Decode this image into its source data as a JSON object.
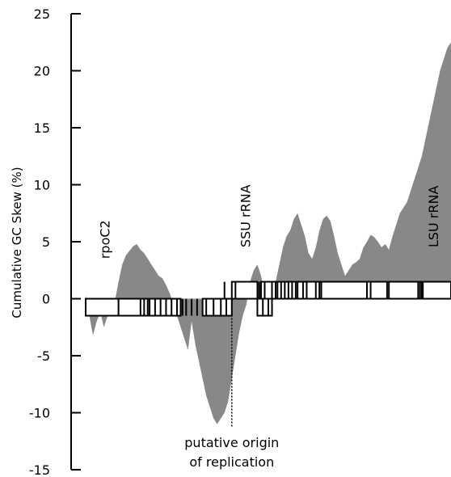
{
  "chart_data": {
    "type": "area",
    "title": "",
    "xlabel": "",
    "ylabel": "Cumulative GC Skew (%)",
    "ylim": [
      -15,
      25
    ],
    "yticks": [
      -15,
      -10,
      -5,
      0,
      5,
      10,
      15,
      20,
      25
    ],
    "ytick_labels": [
      "-15",
      "-10",
      "-5",
      "0",
      "5",
      "10",
      "15",
      "20",
      "25"
    ],
    "xlim": [
      0,
      100
    ],
    "grid": false,
    "legend": "none",
    "series": [
      {
        "color": "#888888",
        "x": [
          0,
          1,
          2,
          3,
          4,
          5,
          6,
          7,
          8,
          9,
          10,
          11,
          12,
          13,
          14,
          15,
          16,
          17,
          18,
          19,
          20,
          21,
          22,
          23,
          24,
          25,
          26,
          27,
          28,
          29,
          30,
          31,
          32,
          33,
          34,
          35,
          36,
          37,
          38,
          39,
          40,
          41,
          42,
          43,
          44,
          45,
          46,
          47,
          48,
          49,
          50,
          51,
          52,
          53,
          54,
          55,
          56,
          57,
          58,
          59,
          60,
          61,
          62,
          63,
          64,
          65,
          66,
          67,
          68,
          69,
          70,
          71,
          72,
          73,
          74,
          75,
          76,
          77,
          78,
          79,
          80,
          81,
          82,
          83,
          84,
          85,
          86,
          87,
          88,
          89,
          90,
          91,
          92,
          93,
          94,
          95,
          96,
          97,
          98,
          99,
          100
        ],
        "y": [
          0.3,
          -1.5,
          -3.2,
          -2.0,
          -1.2,
          -2.5,
          -1.5,
          -0.8,
          -0.2,
          1.5,
          3.0,
          3.8,
          4.2,
          4.6,
          4.8,
          4.3,
          4.0,
          3.5,
          3.0,
          2.5,
          2.0,
          1.8,
          1.2,
          0.5,
          -0.5,
          -1.5,
          -2.5,
          -3.5,
          -4.5,
          -2.0,
          -4.0,
          -5.5,
          -7.0,
          -8.5,
          -9.5,
          -10.5,
          -11.0,
          -10.5,
          -10.0,
          -9.0,
          -7.0,
          -5.0,
          -3.0,
          -1.5,
          -0.5,
          1.5,
          2.5,
          3.0,
          2.0,
          0.5,
          1.0,
          0.8,
          1.5,
          3.0,
          4.5,
          5.5,
          6.0,
          7.0,
          7.5,
          6.5,
          5.5,
          4.0,
          3.5,
          4.5,
          6.0,
          7.0,
          7.3,
          6.8,
          5.5,
          4.0,
          3.0,
          2.0,
          2.5,
          3.0,
          3.2,
          3.5,
          4.5,
          5.0,
          5.6,
          5.4,
          5.0,
          4.5,
          4.8,
          4.3,
          5.5,
          6.5,
          7.5,
          8.0,
          8.5,
          9.5,
          10.5,
          11.5,
          12.5,
          14.0,
          15.5,
          17.0,
          18.5,
          20.0,
          21.0,
          22.0,
          22.5
        ]
      }
    ],
    "annotations": [
      {
        "text": "rpoC2",
        "x": 6.5,
        "y": 3.5
      },
      {
        "text": "SSU rRNA",
        "x": 45,
        "y": 4.5
      },
      {
        "text": "LSU rRNA",
        "x": 96.5,
        "y": 4.5
      },
      {
        "text": "putative origin",
        "x": 40,
        "y": -13
      },
      {
        "text": "of replication",
        "x": 40,
        "y": -14.7
      }
    ],
    "origin_marker_x": 40,
    "genes": {
      "bottom_track": [
        [
          0,
          9
        ],
        [
          9,
          17
        ],
        [
          17,
          26
        ],
        [
          32,
          40
        ],
        [
          47,
          51
        ]
      ],
      "top_track": [
        [
          40,
          47
        ],
        [
          48,
          52
        ],
        [
          52,
          64
        ],
        [
          64,
          77
        ],
        [
          77,
          92
        ],
        [
          92,
          100
        ]
      ],
      "bottom_lines": [
        15,
        16,
        17.5,
        19,
        20.5,
        22,
        23.5,
        25,
        26.5,
        27.5,
        29,
        30.5,
        33,
        35,
        37,
        38.5,
        48.5,
        50
      ],
      "top_lines": [
        38,
        41,
        47.5,
        49,
        51,
        52.5,
        53.5,
        54.5,
        55.5,
        56.5,
        57.5,
        58,
        59.5,
        60.5,
        63,
        64.5,
        78,
        82.5,
        83,
        91,
        91.5,
        92.3
      ]
    }
  }
}
